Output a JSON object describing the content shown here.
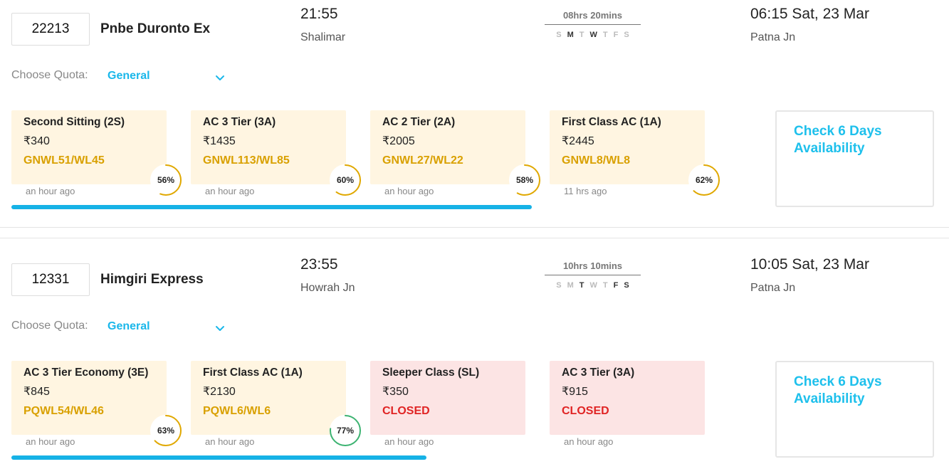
{
  "trains": [
    {
      "number": "22213",
      "name": "Pnbe Duronto Ex",
      "departure_time": "21:55",
      "departure_station": "Shalimar",
      "duration": "08hrs 20mins",
      "days": [
        {
          "d": "S",
          "runs": false
        },
        {
          "d": "M",
          "runs": true
        },
        {
          "d": "T",
          "runs": false
        },
        {
          "d": "W",
          "runs": true
        },
        {
          "d": "T",
          "runs": false
        },
        {
          "d": "F",
          "runs": false
        },
        {
          "d": "S",
          "runs": false
        }
      ],
      "arrival": "06:15 Sat, 23 Mar",
      "arrival_station": "Patna Jn",
      "quota_label": "Choose Quota:",
      "quota_value": "General",
      "classes": [
        {
          "name": "Second Sitting (2S)",
          "fare": "₹340",
          "status": "GNWL51/WL45",
          "closed": false,
          "updated": "an hour ago",
          "chance": "56%",
          "chance_value": 56
        },
        {
          "name": "AC 3 Tier (3A)",
          "fare": "₹1435",
          "status": "GNWL113/WL85",
          "closed": false,
          "updated": "an hour ago",
          "chance": "60%",
          "chance_value": 60
        },
        {
          "name": "AC 2 Tier (2A)",
          "fare": "₹2005",
          "status": "GNWL27/WL22",
          "closed": false,
          "updated": "an hour ago",
          "chance": "58%",
          "chance_value": 58
        },
        {
          "name": "First Class AC (1A)",
          "fare": "₹2445",
          "status": "GNWL8/WL8",
          "closed": false,
          "updated": "11 hrs ago",
          "chance": "62%",
          "chance_value": 62
        }
      ],
      "progress_fraction": 0.74,
      "check_label": "Check 6 Days Availability"
    },
    {
      "number": "12331",
      "name": "Himgiri Express",
      "departure_time": "23:55",
      "departure_station": "Howrah Jn",
      "duration": "10hrs 10mins",
      "days": [
        {
          "d": "S",
          "runs": false
        },
        {
          "d": "M",
          "runs": false
        },
        {
          "d": "T",
          "runs": true
        },
        {
          "d": "W",
          "runs": false
        },
        {
          "d": "T",
          "runs": false
        },
        {
          "d": "F",
          "runs": true
        },
        {
          "d": "S",
          "runs": true
        }
      ],
      "arrival": "10:05 Sat, 23 Mar",
      "arrival_station": "Patna Jn",
      "quota_label": "Choose Quota:",
      "quota_value": "General",
      "classes": [
        {
          "name": "AC 3 Tier Economy (3E)",
          "fare": "₹845",
          "status": "PQWL54/WL46",
          "closed": false,
          "updated": "an hour ago",
          "chance": "63%",
          "chance_value": 63
        },
        {
          "name": "First Class AC (1A)",
          "fare": "₹2130",
          "status": "PQWL6/WL6",
          "closed": false,
          "updated": "an hour ago",
          "chance": "77%",
          "chance_value": 77
        },
        {
          "name": "Sleeper Class (SL)",
          "fare": "₹350",
          "status": "CLOSED",
          "closed": true,
          "updated": "an hour ago",
          "chance": "",
          "chance_value": null
        },
        {
          "name": "AC 3 Tier (3A)",
          "fare": "₹915",
          "status": "CLOSED",
          "closed": true,
          "updated": "an hour ago",
          "chance": "",
          "chance_value": null
        }
      ],
      "progress_fraction": 0.59,
      "check_label": "Check 6 Days Availability"
    }
  ],
  "colors": {
    "accent": "#1ab7ea",
    "waitlist": "#d9a000",
    "closed": "#e02424",
    "chance_mid": "#e0a800",
    "chance_high": "#3cb371"
  }
}
